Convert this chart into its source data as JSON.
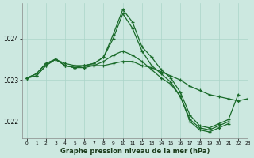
{
  "xlabel": "Graphe pression niveau de la mer (hPa)",
  "bg_color": "#cce8e0",
  "grid_color": "#aad4c8",
  "line_color": "#1a6b2a",
  "ylim": [
    1021.6,
    1024.85
  ],
  "xlim": [
    -0.5,
    23
  ],
  "yticks": [
    1022,
    1023,
    1024
  ],
  "xticks": [
    0,
    1,
    2,
    3,
    4,
    5,
    6,
    7,
    8,
    9,
    10,
    11,
    12,
    13,
    14,
    15,
    16,
    17,
    18,
    19,
    20,
    21,
    22,
    23
  ],
  "series": [
    {
      "x": [
        0,
        1,
        2,
        3,
        4,
        5,
        6,
        7,
        8,
        9,
        10,
        11,
        12,
        13,
        14,
        15,
        16,
        17,
        18,
        19,
        20,
        21,
        22
      ],
      "y": [
        1023.05,
        1023.1,
        1023.35,
        1023.5,
        1023.35,
        1023.3,
        1023.35,
        1023.4,
        1023.55,
        1024.1,
        1024.7,
        1024.4,
        1023.8,
        1023.55,
        1023.25,
        1023.05,
        1022.7,
        1022.15,
        1021.9,
        1021.85,
        1021.95,
        1022.05,
        1022.65
      ]
    },
    {
      "x": [
        0,
        1,
        2,
        3,
        4,
        5,
        6,
        7,
        8,
        9,
        10,
        11,
        12,
        13,
        14,
        15,
        16,
        17,
        18,
        19,
        20,
        21
      ],
      "y": [
        1023.05,
        1023.1,
        1023.35,
        1023.5,
        1023.35,
        1023.3,
        1023.35,
        1023.4,
        1023.55,
        1024.0,
        1024.6,
        1024.25,
        1023.7,
        1023.35,
        1023.15,
        1022.95,
        1022.6,
        1022.05,
        1021.85,
        1021.8,
        1021.9,
        1022.0
      ]
    },
    {
      "x": [
        0,
        1,
        2,
        3,
        4,
        5,
        6,
        7,
        8,
        9,
        10,
        11,
        12,
        13,
        14,
        15,
        16,
        17,
        18,
        19,
        20,
        21,
        22,
        23
      ],
      "y": [
        1023.05,
        1023.15,
        1023.4,
        1023.5,
        1023.4,
        1023.35,
        1023.35,
        1023.35,
        1023.35,
        1023.4,
        1023.45,
        1023.45,
        1023.35,
        1023.3,
        1023.2,
        1023.1,
        1023.0,
        1022.85,
        1022.75,
        1022.65,
        1022.6,
        1022.55,
        1022.5,
        1022.55
      ]
    },
    {
      "x": [
        0,
        1,
        2,
        3,
        4,
        5,
        6,
        7,
        8,
        9,
        10,
        11,
        12,
        13,
        14,
        15,
        16,
        17,
        18,
        19,
        20,
        21
      ],
      "y": [
        1023.05,
        1023.15,
        1023.4,
        1023.5,
        1023.35,
        1023.3,
        1023.3,
        1023.35,
        1023.45,
        1023.6,
        1023.7,
        1023.6,
        1023.45,
        1023.25,
        1023.05,
        1022.9,
        1022.6,
        1022.0,
        1021.8,
        1021.75,
        1021.85,
        1021.95
      ]
    }
  ]
}
